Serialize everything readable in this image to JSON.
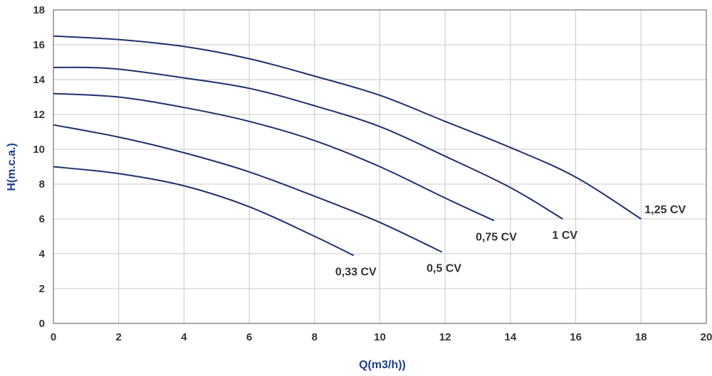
{
  "chart_data": {
    "type": "line",
    "title": "",
    "xlabel": "Q(m3/h))",
    "ylabel": "H(m.c.a.)",
    "xlim": [
      0,
      20
    ],
    "ylim": [
      0,
      18
    ],
    "x_ticks": [
      "0",
      "2",
      "4",
      "6",
      "8",
      "10",
      "12",
      "14",
      "16",
      "18",
      "20"
    ],
    "y_ticks": [
      "0",
      "2",
      "4",
      "6",
      "8",
      "10",
      "12",
      "14",
      "16",
      "18"
    ],
    "grid": true,
    "legend": "none",
    "line_color": "#1f2f6e",
    "series": [
      {
        "name": "0,33 CV",
        "x": [
          0,
          2,
          4,
          6,
          8,
          9.2
        ],
        "y": [
          9.0,
          8.6,
          7.9,
          6.7,
          5.0,
          3.9
        ]
      },
      {
        "name": "0,5 CV",
        "x": [
          0,
          2,
          4,
          6,
          8,
          10,
          11.9
        ],
        "y": [
          11.4,
          10.7,
          9.8,
          8.7,
          7.3,
          5.8,
          4.1
        ]
      },
      {
        "name": "0,75 CV",
        "x": [
          0,
          2,
          4,
          6,
          8,
          10,
          12,
          13.5
        ],
        "y": [
          13.2,
          13.0,
          12.4,
          11.6,
          10.5,
          9.0,
          7.2,
          5.9
        ]
      },
      {
        "name": "1 CV",
        "x": [
          0,
          1,
          2,
          4,
          6,
          8,
          10,
          12,
          14,
          15.6
        ],
        "y": [
          14.7,
          14.7,
          14.6,
          14.1,
          13.5,
          12.5,
          11.3,
          9.6,
          7.8,
          6.0
        ]
      },
      {
        "name": "1,25 CV",
        "x": [
          0,
          2,
          4,
          6,
          8,
          10,
          12,
          14,
          16,
          18
        ],
        "y": [
          16.5,
          16.3,
          15.9,
          15.2,
          14.2,
          13.1,
          11.6,
          10.1,
          8.4,
          6.0
        ]
      }
    ]
  }
}
